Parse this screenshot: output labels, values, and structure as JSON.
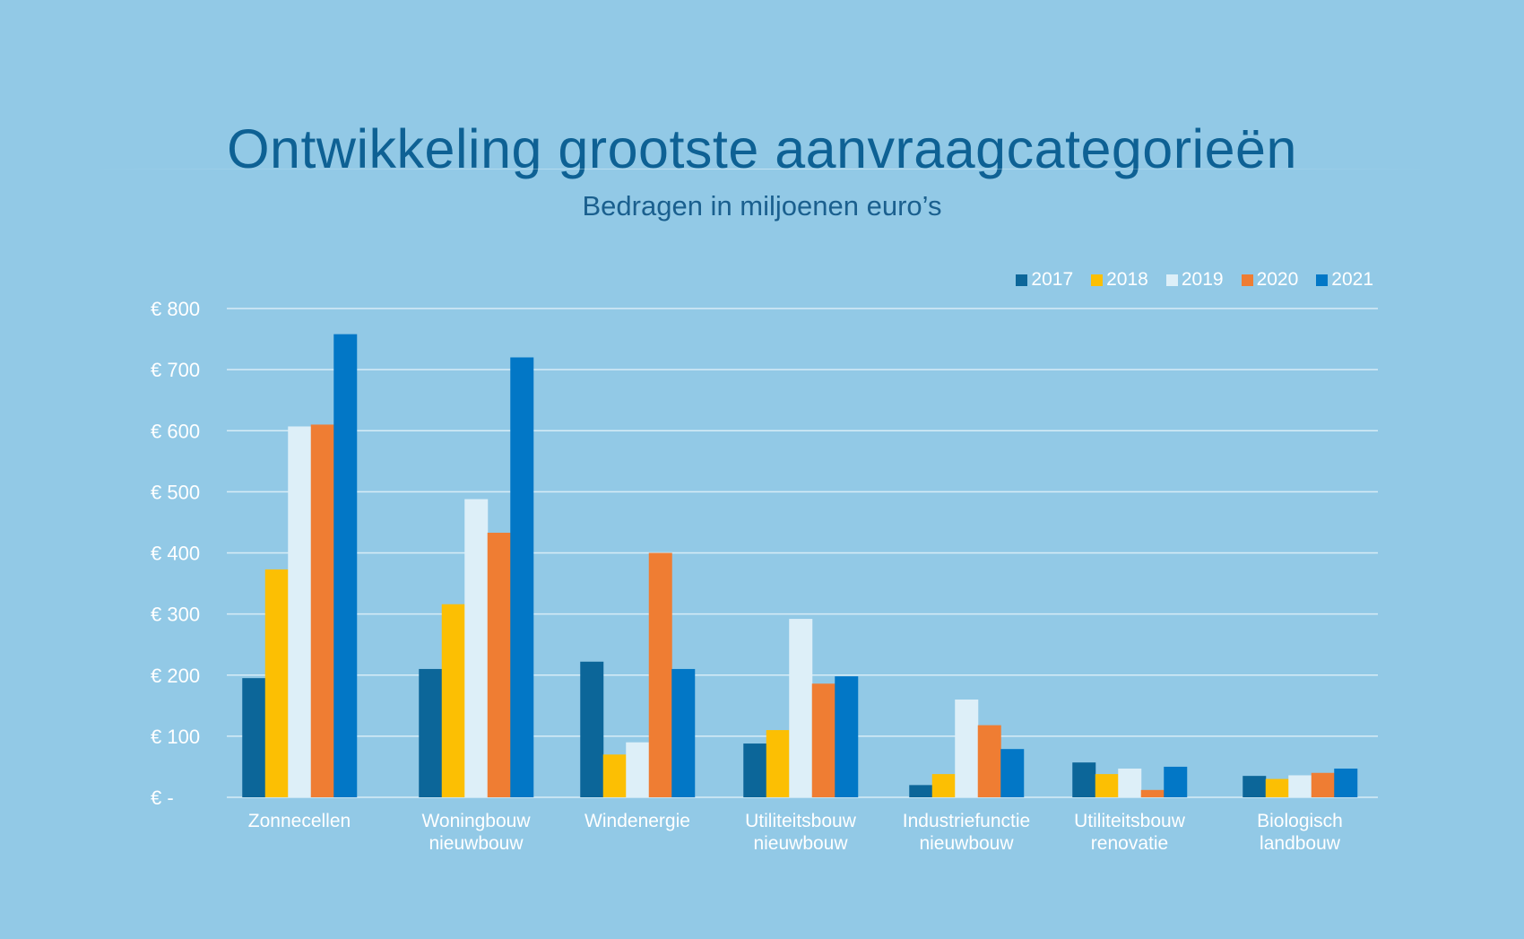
{
  "colors": {
    "background": "#92c9e6",
    "grid": "#d7ecf6",
    "series": [
      "#0c6699",
      "#fcbf03",
      "#ddeff8",
      "#ef7d33",
      "#0277c6"
    ]
  },
  "chart_data": {
    "type": "bar",
    "title": "Ontwikkeling grootste  aanvraagcategorieën",
    "subtitle": "Bedragen in miljoenen euro’s",
    "xlabel": "",
    "ylabel": "",
    "ylim": [
      0,
      800
    ],
    "grid": true,
    "legend_position": "top-right",
    "y_ticks": [
      0,
      100,
      200,
      300,
      400,
      500,
      600,
      700,
      800
    ],
    "y_tick_labels": [
      "€ -",
      "€ 100",
      "€ 200",
      "€ 300",
      "€ 400",
      "€ 500",
      "€ 600",
      "€ 700",
      "€ 800"
    ],
    "categories": [
      [
        "Zonnecellen"
      ],
      [
        "Woningbouw",
        "nieuwbouw"
      ],
      [
        "Windenergie"
      ],
      [
        "Utiliteitsbouw",
        "nieuwbouw"
      ],
      [
        "Industriefunctie",
        "nieuwbouw"
      ],
      [
        "Utiliteitsbouw",
        "renovatie"
      ],
      [
        "Biologisch",
        "landbouw"
      ]
    ],
    "series": [
      {
        "name": "2017",
        "values": [
          195,
          210,
          222,
          88,
          20,
          57,
          35
        ]
      },
      {
        "name": "2018",
        "values": [
          373,
          316,
          70,
          110,
          38,
          38,
          30
        ]
      },
      {
        "name": "2019",
        "values": [
          607,
          488,
          90,
          292,
          160,
          47,
          36
        ]
      },
      {
        "name": "2020",
        "values": [
          610,
          433,
          400,
          186,
          118,
          12,
          40
        ]
      },
      {
        "name": "2021",
        "values": [
          758,
          720,
          210,
          198,
          79,
          50,
          47
        ]
      }
    ]
  }
}
